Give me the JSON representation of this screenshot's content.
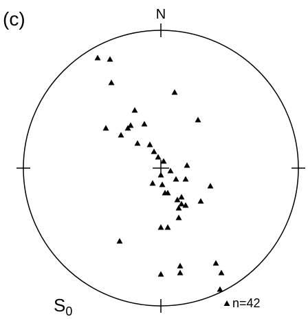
{
  "chart_data": {
    "type": "scatter",
    "title": "(c)",
    "north_label": "N",
    "set_label": {
      "text": "S",
      "subscript": "0"
    },
    "count_label": "n=42",
    "color": "#000000",
    "xlim": [
      -1,
      1
    ],
    "ylim": [
      -1,
      1
    ],
    "x": [
      -0.46,
      -0.37,
      -0.36,
      0.1,
      -0.19,
      0.27,
      -0.4,
      -0.24,
      -0.22,
      -0.12,
      -0.29,
      -0.17,
      -0.08,
      -0.05,
      -0.02,
      0.02,
      0.07,
      0.19,
      0,
      -0.06,
      0.01,
      0.11,
      0.18,
      0.36,
      0.03,
      0.05,
      0.15,
      0.12,
      0.29,
      0.15,
      0.18,
      0.13,
      0.13,
      0,
      0.05,
      -0.3,
      0.4,
      0.14,
      0,
      0.14,
      0.44,
      0.43
    ],
    "y": [
      0.8,
      0.79,
      0.62,
      0.55,
      0.42,
      0.35,
      0.29,
      0.29,
      0.31,
      0.32,
      0.24,
      0.18,
      0.17,
      0.12,
      0.08,
      0.05,
      -0.02,
      0.02,
      -0.05,
      -0.11,
      -0.12,
      -0.08,
      -0.08,
      -0.13,
      -0.18,
      -0.18,
      -0.21,
      -0.23,
      -0.24,
      -0.26,
      -0.27,
      -0.29,
      -0.36,
      -0.43,
      -0.43,
      -0.53,
      -0.69,
      -0.71,
      -0.77,
      -0.76,
      -0.76,
      -0.88
    ]
  }
}
